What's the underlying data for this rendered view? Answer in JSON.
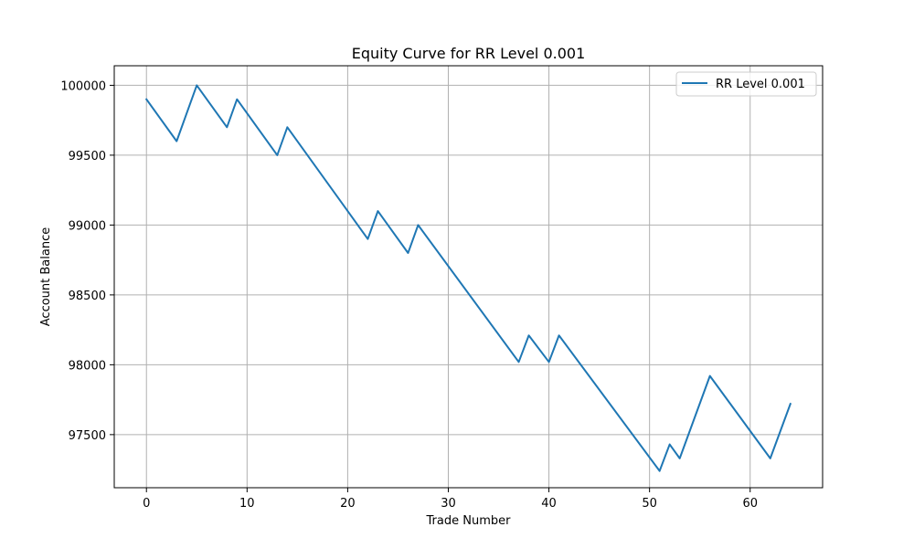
{
  "chart_data": {
    "type": "line",
    "title": "Equity Curve for RR Level 0.001",
    "xlabel": "Trade Number",
    "ylabel": "Account Balance",
    "xlim": [
      -3.2,
      67.2
    ],
    "ylim": [
      97120,
      100140
    ],
    "xticks": [
      0,
      10,
      20,
      30,
      40,
      50,
      60
    ],
    "yticks": [
      97500,
      98000,
      98500,
      99000,
      99500,
      100000
    ],
    "grid": true,
    "legend_position": "top-right",
    "series": [
      {
        "name": "RR Level 0.001",
        "color": "#1f77b4",
        "x": [
          0,
          3,
          5,
          8,
          9,
          13,
          14,
          22,
          23,
          26,
          27,
          37,
          38,
          40,
          41,
          51,
          52,
          53,
          56,
          62,
          64
        ],
        "y": [
          99900,
          99600,
          100000,
          99700,
          99900,
          99500,
          99700,
          98900,
          99100,
          98800,
          99000,
          98020,
          98210,
          98020,
          98210,
          97240,
          97430,
          97330,
          97920,
          97330,
          97720
        ]
      }
    ]
  }
}
